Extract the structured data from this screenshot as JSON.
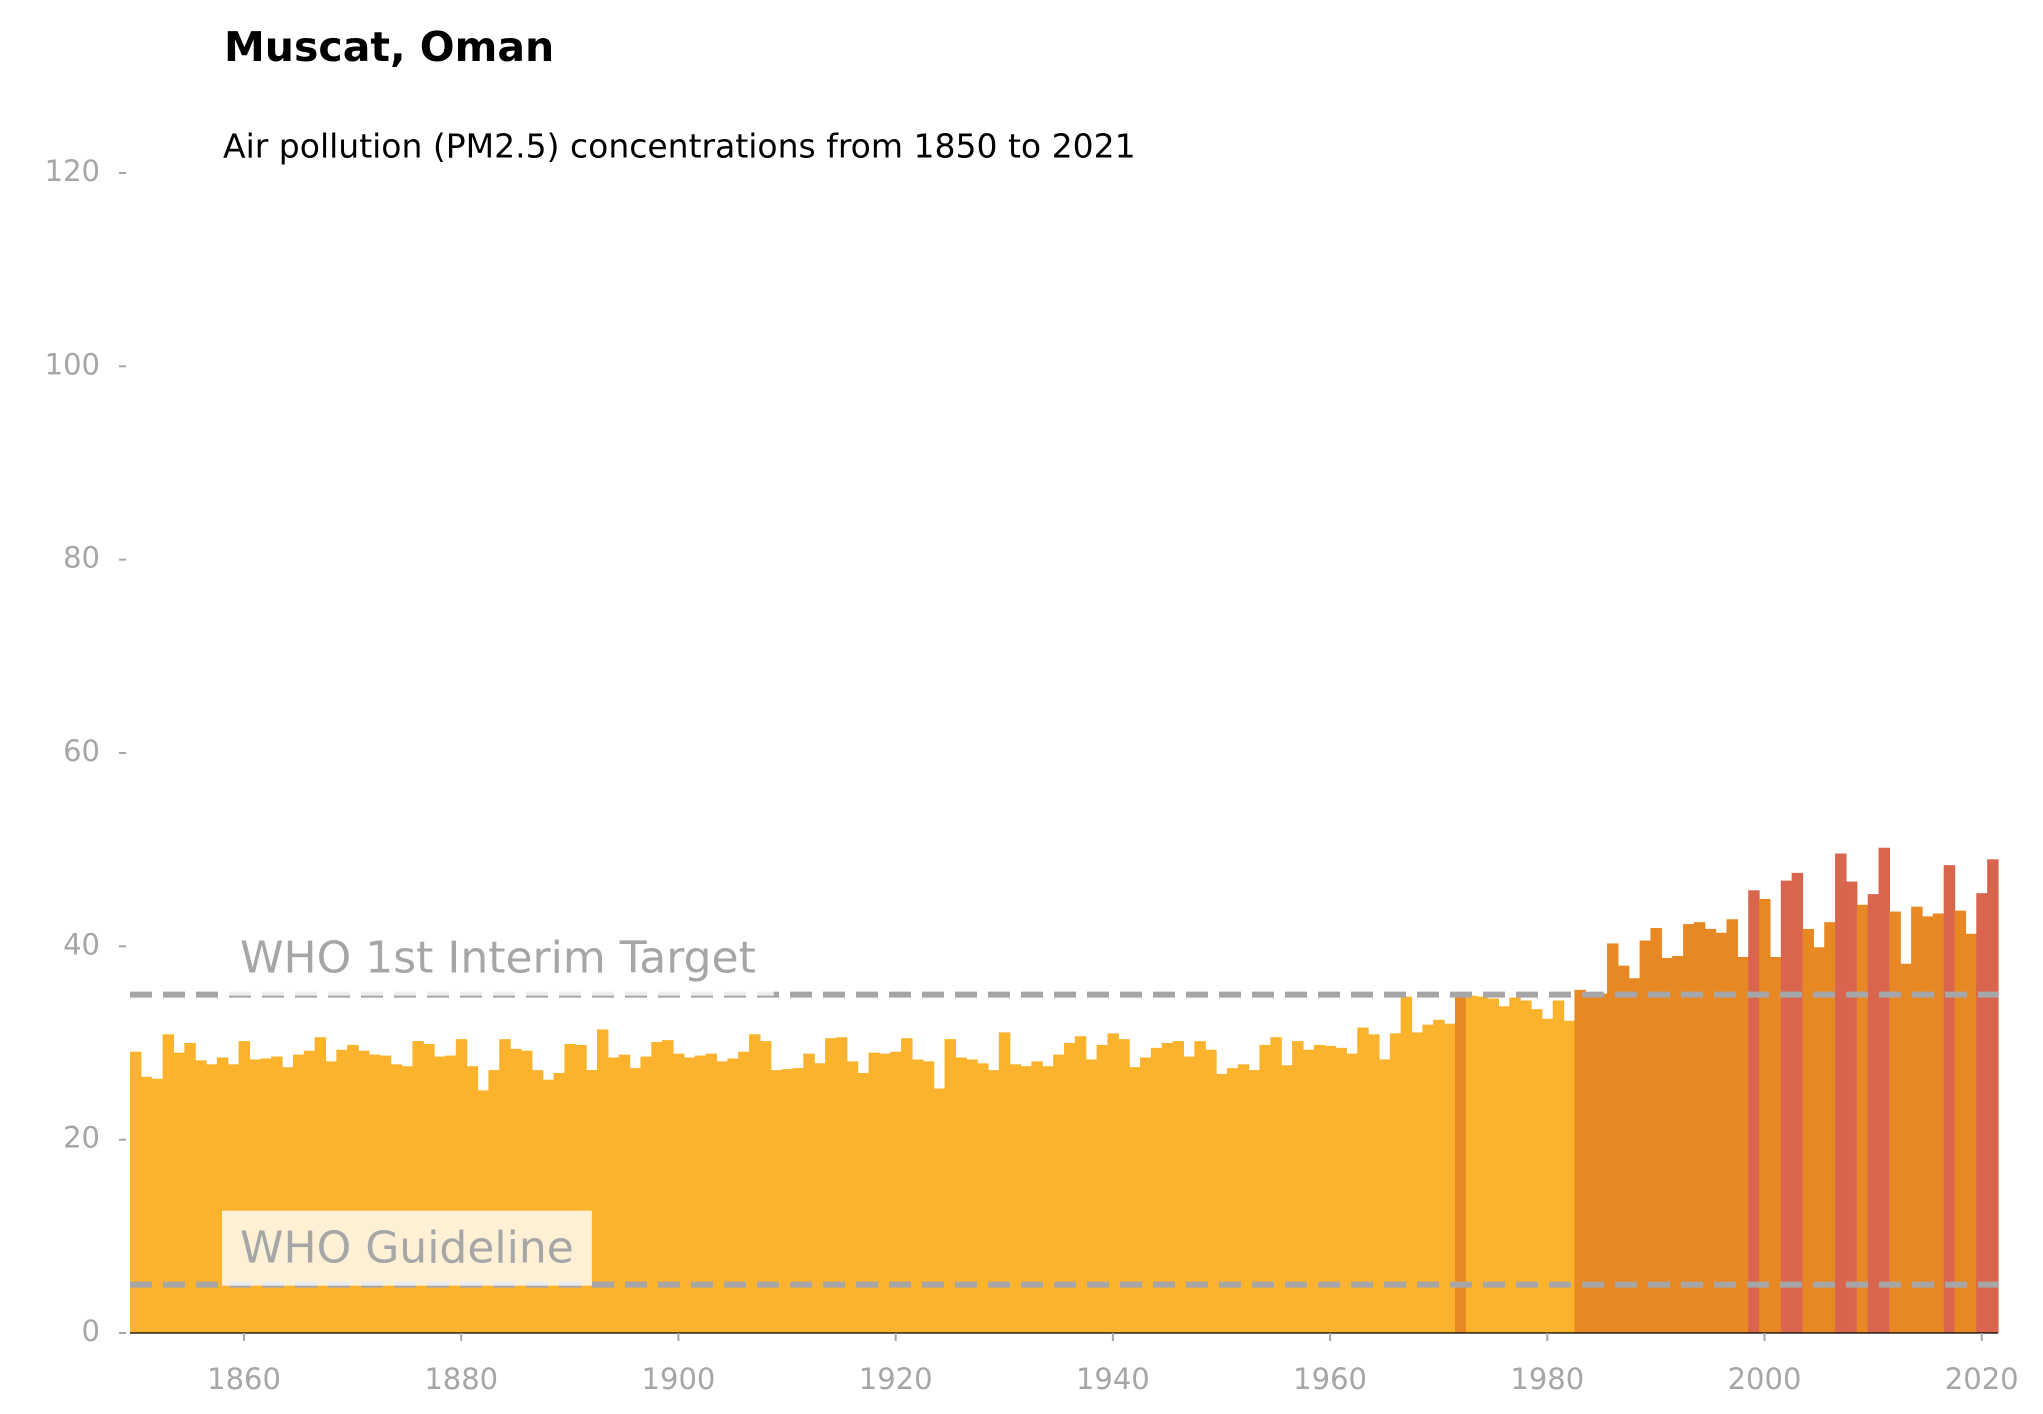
{
  "chart_data": {
    "type": "bar",
    "title": "Muscat, Oman",
    "subtitle": "Air pollution (PM2.5) concentrations from 1850 to 2021",
    "x": [
      1850,
      1851,
      1852,
      1853,
      1854,
      1855,
      1856,
      1857,
      1858,
      1859,
      1860,
      1861,
      1862,
      1863,
      1864,
      1865,
      1866,
      1867,
      1868,
      1869,
      1870,
      1871,
      1872,
      1873,
      1874,
      1875,
      1876,
      1877,
      1878,
      1879,
      1880,
      1881,
      1882,
      1883,
      1884,
      1885,
      1886,
      1887,
      1888,
      1889,
      1890,
      1891,
      1892,
      1893,
      1894,
      1895,
      1896,
      1897,
      1898,
      1899,
      1900,
      1901,
      1902,
      1903,
      1904,
      1905,
      1906,
      1907,
      1908,
      1909,
      1910,
      1911,
      1912,
      1913,
      1914,
      1915,
      1916,
      1917,
      1918,
      1919,
      1920,
      1921,
      1922,
      1923,
      1924,
      1925,
      1926,
      1927,
      1928,
      1929,
      1930,
      1931,
      1932,
      1933,
      1934,
      1935,
      1936,
      1937,
      1938,
      1939,
      1940,
      1941,
      1942,
      1943,
      1944,
      1945,
      1946,
      1947,
      1948,
      1949,
      1950,
      1951,
      1952,
      1953,
      1954,
      1955,
      1956,
      1957,
      1958,
      1959,
      1960,
      1961,
      1962,
      1963,
      1964,
      1965,
      1966,
      1967,
      1968,
      1969,
      1970,
      1971,
      1972,
      1973,
      1974,
      1975,
      1976,
      1977,
      1978,
      1979,
      1980,
      1981,
      1982,
      1983,
      1984,
      1985,
      1986,
      1987,
      1988,
      1989,
      1990,
      1991,
      1992,
      1993,
      1994,
      1995,
      1996,
      1997,
      1998,
      1999,
      2000,
      2001,
      2002,
      2003,
      2004,
      2005,
      2006,
      2007,
      2008,
      2009,
      2010,
      2011,
      2012,
      2013,
      2014,
      2015,
      2016,
      2017,
      2018,
      2019,
      2020,
      2021
    ],
    "values": [
      29.1,
      26.5,
      26.3,
      30.9,
      29.0,
      30.0,
      28.2,
      27.8,
      28.5,
      27.8,
      30.2,
      28.3,
      28.4,
      28.6,
      27.5,
      28.8,
      29.2,
      30.6,
      28.1,
      29.3,
      29.8,
      29.2,
      28.8,
      28.7,
      27.8,
      27.6,
      30.2,
      29.9,
      28.6,
      28.7,
      30.4,
      27.6,
      25.1,
      27.2,
      30.4,
      29.4,
      29.2,
      27.2,
      26.2,
      26.9,
      29.9,
      29.8,
      27.2,
      31.4,
      28.5,
      28.8,
      27.4,
      28.6,
      30.1,
      30.3,
      28.9,
      28.5,
      28.7,
      28.9,
      28.1,
      28.4,
      29.1,
      30.9,
      30.2,
      27.2,
      27.3,
      27.4,
      28.9,
      27.9,
      30.5,
      30.6,
      28.1,
      26.9,
      29.0,
      28.9,
      29.1,
      30.5,
      28.3,
      28.1,
      25.3,
      30.4,
      28.5,
      28.3,
      27.9,
      27.2,
      31.1,
      27.8,
      27.6,
      28.1,
      27.6,
      28.8,
      30.0,
      30.7,
      28.3,
      29.8,
      31.0,
      30.4,
      27.5,
      28.5,
      29.5,
      30.0,
      30.2,
      28.6,
      30.2,
      29.3,
      26.8,
      27.4,
      27.8,
      27.2,
      29.8,
      30.6,
      27.7,
      30.2,
      29.3,
      29.8,
      29.7,
      29.5,
      28.9,
      31.6,
      30.9,
      28.3,
      31.0,
      34.8,
      31.1,
      31.9,
      32.4,
      32.0,
      35.2,
      34.9,
      34.8,
      34.6,
      33.8,
      34.7,
      34.4,
      33.5,
      32.5,
      34.4,
      32.3,
      35.5,
      35.2,
      35.1,
      40.3,
      38.0,
      36.7,
      40.6,
      41.9,
      38.8,
      39.0,
      42.3,
      42.5,
      41.8,
      41.4,
      42.8,
      38.9,
      45.8,
      44.9,
      38.9,
      46.8,
      47.6,
      41.8,
      39.9,
      42.5,
      49.6,
      46.7,
      44.3,
      45.4,
      50.2,
      43.6,
      38.2,
      44.1,
      43.1,
      43.4,
      48.4,
      43.7,
      41.3,
      45.5,
      49.0
    ],
    "colors": [
      "#fbb32e",
      "#fbb32e",
      "#fbb32e",
      "#fbb32e",
      "#fbb32e",
      "#fbb32e",
      "#fbb32e",
      "#fbb32e",
      "#fbb32e",
      "#fbb32e",
      "#fbb32e",
      "#fbb32e",
      "#fbb32e",
      "#fbb32e",
      "#fbb32e",
      "#fbb32e",
      "#fbb32e",
      "#fbb32e",
      "#fbb32e",
      "#fbb32e",
      "#fbb32e",
      "#fbb32e",
      "#fbb32e",
      "#fbb32e",
      "#fbb32e",
      "#fbb32e",
      "#fbb32e",
      "#fbb32e",
      "#fbb32e",
      "#fbb32e",
      "#fbb32e",
      "#fbb32e",
      "#fbb32e",
      "#fbb32e",
      "#fbb32e",
      "#fbb32e",
      "#fbb32e",
      "#fbb32e",
      "#fbb32e",
      "#fbb32e",
      "#fbb32e",
      "#fbb32e",
      "#fbb32e",
      "#fbb32e",
      "#fbb32e",
      "#fbb32e",
      "#fbb32e",
      "#fbb32e",
      "#fbb32e",
      "#fbb32e",
      "#fbb32e",
      "#fbb32e",
      "#fbb32e",
      "#fbb32e",
      "#fbb32e",
      "#fbb32e",
      "#fbb32e",
      "#fbb32e",
      "#fbb32e",
      "#fbb32e",
      "#fbb32e",
      "#fbb32e",
      "#fbb32e",
      "#fbb32e",
      "#fbb32e",
      "#fbb32e",
      "#fbb32e",
      "#fbb32e",
      "#fbb32e",
      "#fbb32e",
      "#fbb32e",
      "#fbb32e",
      "#fbb32e",
      "#fbb32e",
      "#fbb32e",
      "#fbb32e",
      "#fbb32e",
      "#fbb32e",
      "#fbb32e",
      "#fbb32e",
      "#fbb32e",
      "#fbb32e",
      "#fbb32e",
      "#fbb32e",
      "#fbb32e",
      "#fbb32e",
      "#fbb32e",
      "#fbb32e",
      "#fbb32e",
      "#fbb32e",
      "#fbb32e",
      "#fbb32e",
      "#fbb32e",
      "#fbb32e",
      "#fbb32e",
      "#fbb32e",
      "#fbb32e",
      "#fbb32e",
      "#fbb32e",
      "#fbb32e",
      "#fbb32e",
      "#fbb32e",
      "#fbb32e",
      "#fbb32e",
      "#fbb32e",
      "#fbb32e",
      "#fbb32e",
      "#fbb32e",
      "#fbb32e",
      "#fbb32e",
      "#fbb32e",
      "#fbb32e",
      "#fbb32e",
      "#fbb32e",
      "#fbb32e",
      "#fbb32e",
      "#fbb32e",
      "#fbb32e",
      "#fbb32e",
      "#fbb32e",
      "#fbb32e",
      "#fbb32e",
      "#e88824",
      "#fbb32e",
      "#fbb32e",
      "#fbb32e",
      "#fbb32e",
      "#fbb32e",
      "#fbb32e",
      "#fbb32e",
      "#fbb32e",
      "#fbb32e",
      "#fbb32e",
      "#e88824",
      "#e88824",
      "#e88824",
      "#e88824",
      "#e88824",
      "#e88824",
      "#e88824",
      "#e88824",
      "#e88824",
      "#e88824",
      "#e88824",
      "#e88824",
      "#e88824",
      "#e88824",
      "#e88824",
      "#e88824",
      "#d9654f",
      "#e88824",
      "#e88824",
      "#d9654f",
      "#d9654f",
      "#e88824",
      "#e88824",
      "#e88824",
      "#d9654f",
      "#d9654f",
      "#e88824",
      "#d9654f",
      "#d9654f",
      "#e88824",
      "#e88824",
      "#e88824",
      "#e88824",
      "#e88824",
      "#d9654f",
      "#e88824",
      "#e88824",
      "#d9654f",
      "#d9654f"
    ],
    "xlim": [
      1849.5,
      2021.5
    ],
    "ylim": [
      0,
      120
    ],
    "xticks": [
      1860,
      1880,
      1900,
      1920,
      1940,
      1960,
      1980,
      2000,
      2020
    ],
    "yticks": [
      0,
      20,
      40,
      60,
      80,
      100,
      120
    ],
    "reference_lines": [
      {
        "value": 35,
        "label": "WHO 1st Interim Target"
      },
      {
        "value": 5,
        "label": "WHO Guideline"
      }
    ]
  }
}
